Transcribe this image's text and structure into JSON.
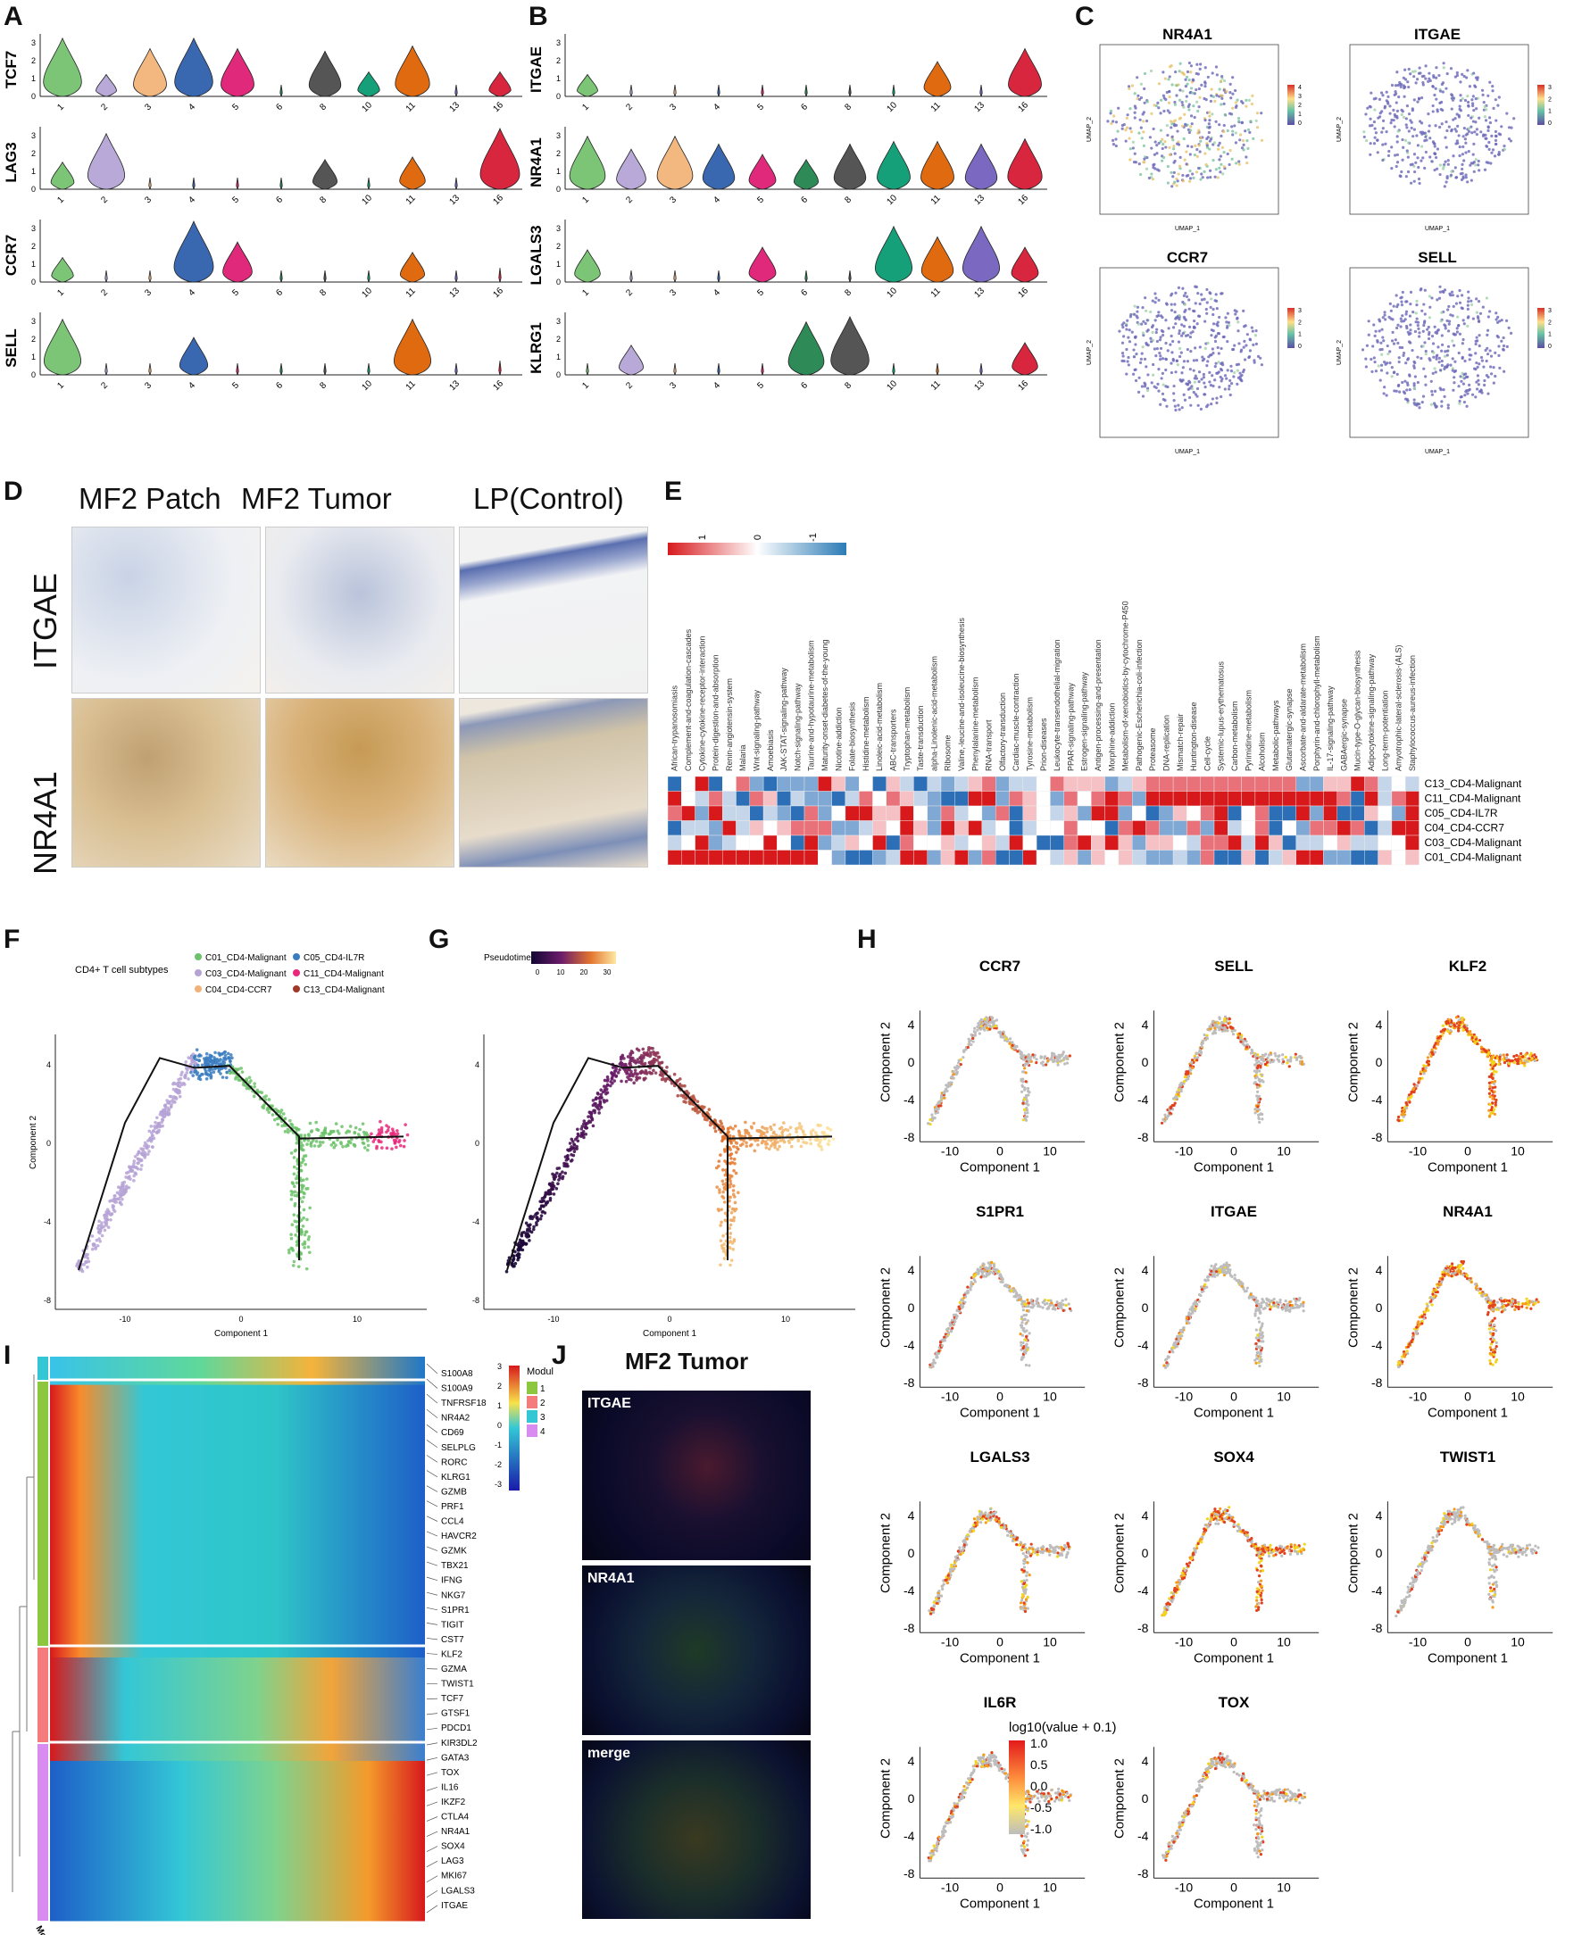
{
  "panels": {
    "A": "A",
    "B": "B",
    "C": "C",
    "D": "D",
    "E": "E",
    "F": "F",
    "G": "G",
    "H": "H",
    "I": "I",
    "J": "J"
  },
  "violin_A": {
    "genes": [
      "TCF7",
      "LAG3",
      "CCR7",
      "SELL"
    ],
    "clusters": [
      "1",
      "2",
      "3",
      "4",
      "5",
      "6",
      "8",
      "10",
      "11",
      "13",
      "16"
    ],
    "colors": [
      "#7cc576",
      "#b9a9d8",
      "#f2b880",
      "#3a68b0",
      "#e0297a",
      "#2e8b57",
      "#555555",
      "#16a07a",
      "#e06a10",
      "#7b68c0",
      "#d7263d"
    ],
    "yticks": [
      "0",
      "1",
      "2",
      "3"
    ],
    "levels": [
      [
        0.95,
        0.25,
        0.75,
        0.95,
        0.75,
        0.05,
        0.7,
        0.3,
        0.8,
        0.05,
        0.3
      ],
      [
        0.35,
        0.9,
        0.05,
        0.05,
        0.05,
        0.05,
        0.4,
        0.05,
        0.45,
        0.05,
        1.0
      ],
      [
        0.3,
        0.05,
        0.05,
        1.0,
        0.6,
        0.05,
        0.05,
        0.05,
        0.4,
        0.05,
        0.1
      ],
      [
        0.9,
        0.05,
        0.05,
        0.55,
        0.05,
        0.05,
        0.05,
        0.05,
        0.9,
        0.05,
        0.1
      ]
    ]
  },
  "violin_B": {
    "genes": [
      "ITGAE",
      "NR4A1",
      "LGALS3",
      "KLRG1"
    ],
    "clusters": [
      "1",
      "2",
      "3",
      "4",
      "5",
      "6",
      "8",
      "10",
      "11",
      "13",
      "16"
    ],
    "levels": [
      [
        0.25,
        0.05,
        0.05,
        0.05,
        0.05,
        0.05,
        0.05,
        0.05,
        0.5,
        0.05,
        0.75
      ],
      [
        0.85,
        0.6,
        0.85,
        0.7,
        0.5,
        0.4,
        0.7,
        0.75,
        0.75,
        0.7,
        0.8
      ],
      [
        0.45,
        0.05,
        0.05,
        0.05,
        0.5,
        0.05,
        0.05,
        0.9,
        0.7,
        0.9,
        0.5
      ],
      [
        0.05,
        0.4,
        0.05,
        0.05,
        0.05,
        0.85,
        0.95,
        0.05,
        0.05,
        0.05,
        0.45
      ]
    ]
  },
  "umap_C": {
    "titles": [
      "NR4A1",
      "ITGAE",
      "CCR7",
      "SELL"
    ],
    "xlabel": "UMAP_1",
    "ylabel": "UMAP_2",
    "scales": [
      [
        "4",
        "3",
        "2",
        "1",
        "0"
      ],
      [
        "3",
        "2",
        "1",
        "0"
      ],
      [
        "3",
        "2",
        "1",
        "0"
      ],
      [
        "3",
        "2",
        "1",
        "0"
      ]
    ]
  },
  "ihc_D": {
    "columns": [
      "MF2 Patch",
      "MF2 Tumor",
      "LP(Control)"
    ],
    "rows": [
      "ITGAE",
      "NR4A1"
    ]
  },
  "heatmap_E": {
    "scale_labels": [
      "1",
      "0",
      "-1"
    ],
    "pathways": [
      "African-trypanosomiasis",
      "Complement-and-coagulation-cascades",
      "Cytokine-cytokine-receptor-interaction",
      "Protein-digestion-and-absorption",
      "Renin-angiotensin-system",
      "Malaria",
      "Wnt-signaling-pathway",
      "Amoebiasis",
      "JAK-STAT-signaling-pathway",
      "Notch-signaling-pathway",
      "Taurine-and-hypotaurine-metabolism",
      "Maturity-onset-diabetes-of-the-young",
      "Nicotine-addiction",
      "Folate-biosynthesis",
      "Histidine-metabolism",
      "Linoleic-acid-metabolism",
      "ABC-transporters",
      "Tryptophan-metabolism",
      "Taste-transduction",
      "alpha-Linolenic-acid-metabolism",
      "Ribosome",
      "Valine,-leucine-and-isoleucine-biosynthesis",
      "Phenylalanine-metabolism",
      "RNA-transport",
      "Olfactory-transduction",
      "Cardiac-muscle-contraction",
      "Tyrosine-metabolism",
      "Prion-diseases",
      "Leukocyte-transendothelial-migration",
      "PPAR-signaling-pathway",
      "Estrogen-signaling-pathway",
      "Antigen-processing-and-presentation",
      "Morphine-addiction",
      "Metabolism-of-xenobiotics-by-cytochrome-P450",
      "Pathogenic-Escherichia-coli-infection",
      "Proteasome",
      "DNA-replication",
      "Mismatch-repair",
      "Huntington-disease",
      "Cell-cycle",
      "Systemic-lupus-erythematosus",
      "Carbon-metabolism",
      "Pyrimidine-metabolism",
      "Alcoholism",
      "Metabolic-pathways",
      "Glutamatergic-synapse",
      "Ascorbate-and-aldarate-metabolism",
      "Porphyrin-and-chlorophyll-metabolism",
      "IL-17-signaling-pathway",
      "GABAergic-synapse",
      "Mucin-type-O-glycan-biosynthesis",
      "Adipocytokine-signaling-pathway",
      "Long-term-potentiation",
      "Amyotrophic-lateral-sclerosis-(ALS)",
      "Staphylococcus-aureus-infection"
    ],
    "rows": [
      "C13_CD4-Malignant",
      "C11_CD4-Malignant",
      "C05_CD4-IL7R",
      "C04_CD4-CCR7",
      "C03_CD4-Malignant",
      "C01_CD4-Malignant"
    ]
  },
  "trajectory_F": {
    "legend_title": "CD4+ T cell subtypes",
    "legend": [
      {
        "name": "C01_CD4-Malignant",
        "color": "#6cc26a"
      },
      {
        "name": "C05_CD4-IL7R",
        "color": "#3a7cc0"
      },
      {
        "name": "C03_CD4-Malignant",
        "color": "#b6a3d6"
      },
      {
        "name": "C11_CD4-Malignant",
        "color": "#e8287a"
      },
      {
        "name": "C04_CD4-CCR7",
        "color": "#f0b27a"
      },
      {
        "name": "C13_CD4-Malignant",
        "color": "#a0392a"
      }
    ],
    "xlabel": "Component 1",
    "ylabel": "Component 2",
    "xticks": [
      "-10",
      "0",
      "10"
    ],
    "yticks": [
      "4",
      "0",
      "-4",
      "-8"
    ]
  },
  "trajectory_G": {
    "legend_title": "Pseudotime",
    "legend_ticks": [
      "0",
      "10",
      "20",
      "30"
    ],
    "xlabel": "Component 1",
    "xticks": [
      "-10",
      "0",
      "10"
    ],
    "yticks": [
      "4",
      "0",
      "-4",
      "-8"
    ]
  },
  "trajectory_H": {
    "genes": [
      "CCR7",
      "SELL",
      "KLF2",
      "S1PR1",
      "ITGAE",
      "NR4A1",
      "LGALS3",
      "SOX4",
      "TWIST1",
      "IL6R",
      "TOX"
    ],
    "intensity": [
      0.25,
      0.35,
      0.9,
      0.2,
      0.2,
      0.8,
      0.45,
      0.75,
      0.2,
      0.3,
      0.35
    ],
    "xlabel": "Component 1",
    "ylabel": "Component 2",
    "xticks": [
      "-10",
      "0",
      "10"
    ],
    "yticks": [
      "4",
      "0",
      "-4",
      "-8"
    ],
    "legend_title": "log10(value + 0.1)",
    "legend_ticks": [
      "1.0",
      "0.5",
      "0.0",
      "-0.5",
      "-1.0"
    ]
  },
  "heatmap_I": {
    "scale_labels": [
      "3",
      "2",
      "1",
      "0",
      "-1",
      "-2",
      "-3"
    ],
    "module_title": "Module",
    "modules": [
      {
        "name": "1",
        "color": "#8dc63f"
      },
      {
        "name": "2",
        "color": "#f47c7c"
      },
      {
        "name": "3",
        "color": "#33c7d6"
      },
      {
        "name": "4",
        "color": "#d98cf0"
      }
    ],
    "side_label": "Module",
    "genes": [
      "S100A8",
      "S100A9",
      "TNFRSF18",
      "NR4A2",
      "CD69",
      "SELPLG",
      "RORC",
      "KLRG1",
      "GZMB",
      "PRF1",
      "CCL4",
      "HAVCR2",
      "GZMK",
      "TBX21",
      "IFNG",
      "NKG7",
      "S1PR1",
      "TIGIT",
      "CST7",
      "KLF2",
      "GZMA",
      "TWIST1",
      "TCF7",
      "GTSF1",
      "PDCD1",
      "KIR3DL2",
      "GATA3",
      "TOX",
      "IL16",
      "IKZF2",
      "CTLA4",
      "NR4A1",
      "SOX4",
      "LAG3",
      "MKI67",
      "LGALS3",
      "ITGAE"
    ]
  },
  "fluor_J": {
    "title": "MF2 Tumor",
    "labels": [
      "ITGAE",
      "NR4A1",
      "merge"
    ]
  }
}
